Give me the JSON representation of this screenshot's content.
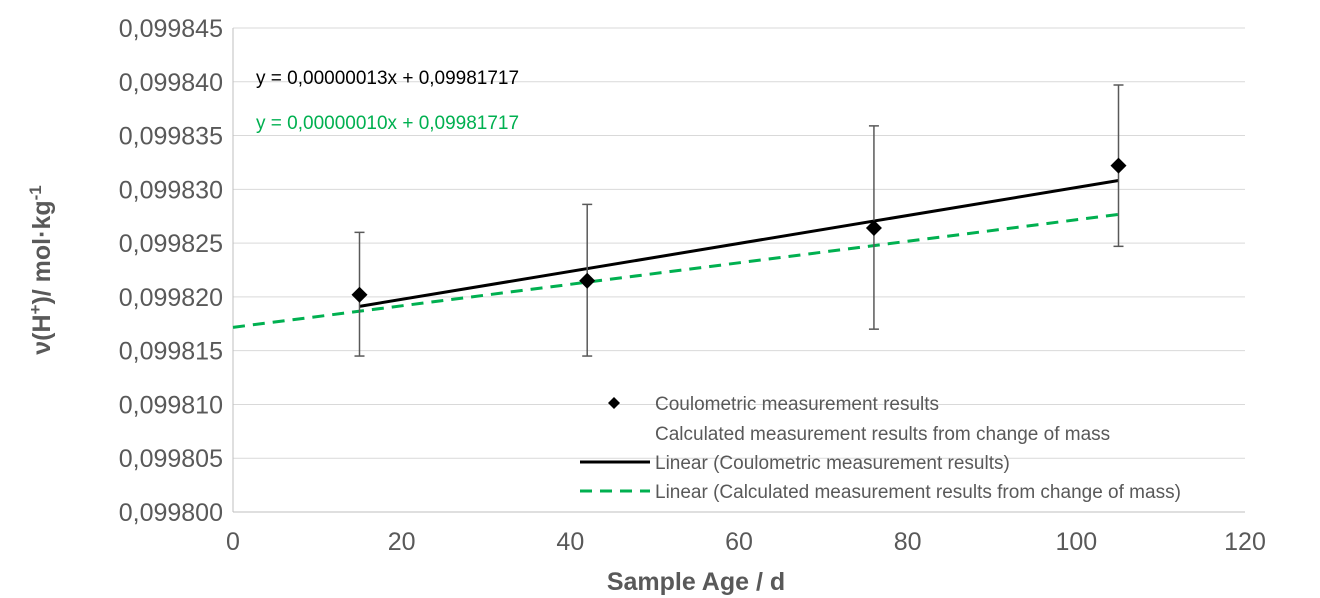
{
  "chart_data": {
    "type": "scatter",
    "title": "",
    "xlabel": "Sample Age / d",
    "ylabel_parts": {
      "pre": "ν(H",
      "sup1": "+",
      "mid": ")/ mol·kg",
      "sup2": "-1"
    },
    "xlim": [
      0,
      120
    ],
    "ylim": [
      0.0998,
      0.099845
    ],
    "x_ticks": [
      0,
      20,
      40,
      60,
      80,
      100,
      120
    ],
    "x_tick_labels": [
      "0",
      "20",
      "40",
      "60",
      "80",
      "100",
      "120"
    ],
    "y_ticks": [
      0.0998,
      0.099805,
      0.09981,
      0.099815,
      0.09982,
      0.099825,
      0.09983,
      0.099835,
      0.09984,
      0.099845
    ],
    "y_tick_labels": [
      "0,099800",
      "0,099805",
      "0,099810",
      "0,099815",
      "0,099820",
      "0,099825",
      "0,099830",
      "0,099835",
      "0,099840",
      "0,099845"
    ],
    "grid": {
      "horizontal": true,
      "vertical": false
    },
    "series": [
      {
        "name": "Coulometric measurement results",
        "marker": "diamond",
        "color": "#000000",
        "points": [
          {
            "x": 15,
            "y": 0.0998202,
            "err_low": 0.0998145,
            "err_high": 0.099826
          },
          {
            "x": 42,
            "y": 0.0998215,
            "err_low": 0.0998145,
            "err_high": 0.0998286
          },
          {
            "x": 76,
            "y": 0.0998264,
            "err_low": 0.099817,
            "err_high": 0.0998359
          },
          {
            "x": 105,
            "y": 0.0998322,
            "err_low": 0.0998247,
            "err_high": 0.0998397
          }
        ]
      },
      {
        "name": "Calculated measurement results from change of mass",
        "marker": "none",
        "color": "#00b050",
        "points": []
      }
    ],
    "trendlines": [
      {
        "name": "Linear (Coulometric measurement results)",
        "color": "#000000",
        "style": "solid",
        "x_range": [
          15,
          105
        ],
        "slope": 1.3e-07,
        "intercept": 0.09981717,
        "equation": "y = 0,00000013x + 0,09981717"
      },
      {
        "name": "Linear (Calculated measurement results from change of mass)",
        "color": "#00b050",
        "style": "dashed",
        "x_range": [
          0,
          105
        ],
        "slope": 1e-07,
        "intercept": 0.09981717,
        "equation": "y = 0,00000010x + 0,09981717"
      }
    ],
    "legend": {
      "position": "bottom-right",
      "entries": [
        "Coulometric measurement results",
        "Calculated measurement results from change of mass",
        "Linear (Coulometric measurement results)",
        "Linear (Calculated measurement results from change of mass)"
      ]
    }
  }
}
